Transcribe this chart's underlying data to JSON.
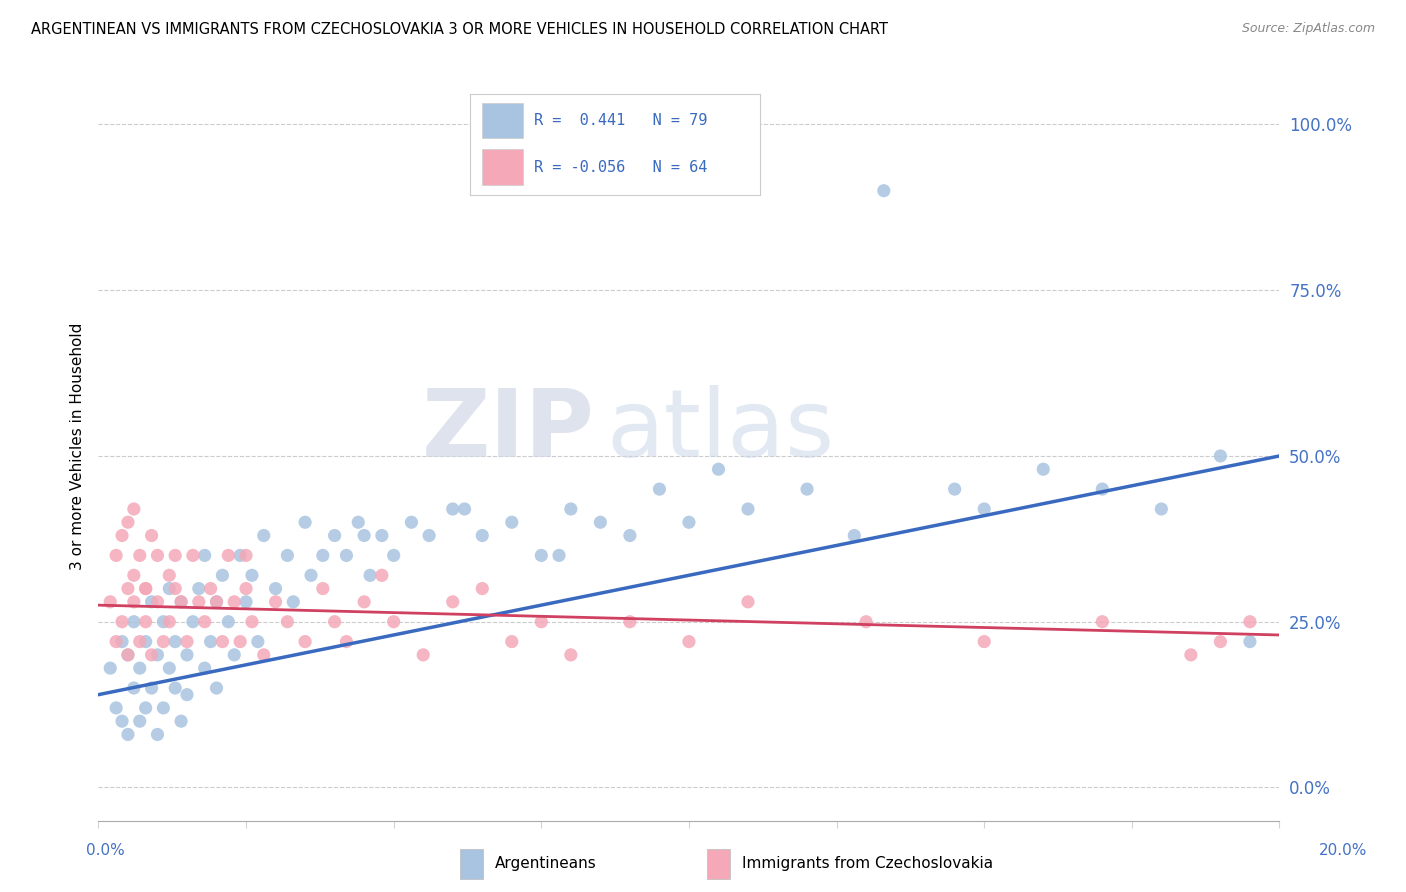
{
  "title": "ARGENTINEAN VS IMMIGRANTS FROM CZECHOSLOVAKIA 3 OR MORE VEHICLES IN HOUSEHOLD CORRELATION CHART",
  "source": "Source: ZipAtlas.com",
  "ylabel": "3 or more Vehicles in Household",
  "xlim": [
    0.0,
    20.0
  ],
  "ylim": [
    -5.0,
    108.0
  ],
  "yticks": [
    0.0,
    25.0,
    50.0,
    75.0,
    100.0
  ],
  "ytick_labels": [
    "0.0%",
    "25.0%",
    "50.0%",
    "75.0%",
    "100.0%"
  ],
  "legend_blue_r": "0.441",
  "legend_blue_n": "79",
  "legend_pink_r": "-0.056",
  "legend_pink_n": "64",
  "blue_color": "#a8c4e0",
  "blue_line_color": "#3a6abf",
  "pink_color": "#f4a8b8",
  "pink_line_color": "#d04060",
  "watermark_zip": "ZIP",
  "watermark_atlas": "atlas",
  "blue_scatter_x": [
    0.2,
    0.3,
    0.4,
    0.4,
    0.5,
    0.5,
    0.6,
    0.6,
    0.7,
    0.7,
    0.8,
    0.8,
    0.9,
    0.9,
    1.0,
    1.0,
    1.1,
    1.1,
    1.2,
    1.2,
    1.3,
    1.3,
    1.4,
    1.4,
    1.5,
    1.5,
    1.6,
    1.7,
    1.8,
    1.8,
    1.9,
    2.0,
    2.0,
    2.1,
    2.2,
    2.3,
    2.4,
    2.5,
    2.6,
    2.7,
    2.8,
    3.0,
    3.2,
    3.3,
    3.5,
    3.6,
    3.8,
    4.0,
    4.2,
    4.4,
    4.6,
    4.8,
    5.0,
    5.3,
    5.6,
    6.0,
    6.5,
    7.0,
    7.5,
    8.0,
    8.5,
    9.0,
    9.5,
    10.0,
    11.0,
    12.0,
    12.8,
    14.5,
    15.0,
    16.0,
    17.0,
    18.0,
    19.0,
    4.5,
    6.2,
    7.8,
    10.5,
    13.3,
    19.5
  ],
  "blue_scatter_y": [
    18,
    12,
    22,
    10,
    8,
    20,
    15,
    25,
    10,
    18,
    22,
    12,
    28,
    15,
    20,
    8,
    25,
    12,
    18,
    30,
    22,
    15,
    28,
    10,
    20,
    14,
    25,
    30,
    18,
    35,
    22,
    28,
    15,
    32,
    25,
    20,
    35,
    28,
    32,
    22,
    38,
    30,
    35,
    28,
    40,
    32,
    35,
    38,
    35,
    40,
    32,
    38,
    35,
    40,
    38,
    42,
    38,
    40,
    35,
    42,
    40,
    38,
    45,
    40,
    42,
    45,
    38,
    45,
    42,
    48,
    45,
    42,
    50,
    38,
    42,
    35,
    48,
    90,
    22
  ],
  "pink_scatter_x": [
    0.2,
    0.3,
    0.3,
    0.4,
    0.4,
    0.5,
    0.5,
    0.5,
    0.6,
    0.6,
    0.7,
    0.7,
    0.8,
    0.8,
    0.9,
    0.9,
    1.0,
    1.0,
    1.1,
    1.2,
    1.2,
    1.3,
    1.4,
    1.5,
    1.6,
    1.7,
    1.8,
    1.9,
    2.0,
    2.1,
    2.2,
    2.3,
    2.4,
    2.5,
    2.6,
    2.8,
    3.0,
    3.2,
    3.5,
    3.8,
    4.0,
    4.2,
    4.5,
    5.0,
    5.5,
    6.0,
    7.0,
    7.5,
    8.0,
    9.0,
    10.0,
    11.0,
    13.0,
    15.0,
    17.0,
    18.5,
    19.0,
    0.6,
    0.8,
    1.3,
    2.5,
    4.8,
    6.5,
    19.5
  ],
  "pink_scatter_y": [
    28,
    35,
    22,
    38,
    25,
    30,
    20,
    40,
    32,
    28,
    35,
    22,
    30,
    25,
    38,
    20,
    28,
    35,
    22,
    32,
    25,
    30,
    28,
    22,
    35,
    28,
    25,
    30,
    28,
    22,
    35,
    28,
    22,
    30,
    25,
    20,
    28,
    25,
    22,
    30,
    25,
    22,
    28,
    25,
    20,
    28,
    22,
    25,
    20,
    25,
    22,
    28,
    25,
    22,
    25,
    20,
    22,
    42,
    30,
    35,
    35,
    32,
    30,
    25
  ]
}
